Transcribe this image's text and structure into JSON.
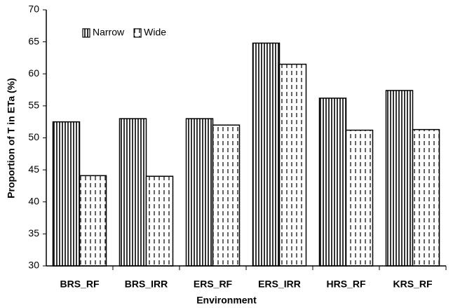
{
  "chart_data": {
    "type": "bar",
    "x_label": "Environment",
    "y_label": "Proportion of T in ETa (%)",
    "categories": [
      "BRS_RF",
      "BRS_IRR",
      "ERS_RF",
      "ERS_IRR",
      "HRS_RF",
      "KRS_RF"
    ],
    "series": [
      {
        "name": "Narrow",
        "color": "#000000",
        "pattern": "vertical-lines",
        "values": [
          52.5,
          53.0,
          53.0,
          64.8,
          56.2,
          57.4
        ]
      },
      {
        "name": "Wide",
        "color": "#000000",
        "pattern": "dashed-lines",
        "values": [
          44.1,
          44.0,
          52.0,
          61.5,
          51.2,
          51.3
        ]
      }
    ],
    "ylim": [
      30,
      70
    ],
    "yticks": [
      30,
      35,
      40,
      45,
      50,
      55,
      60,
      65,
      70
    ],
    "grid": false,
    "legend": "top-left"
  }
}
